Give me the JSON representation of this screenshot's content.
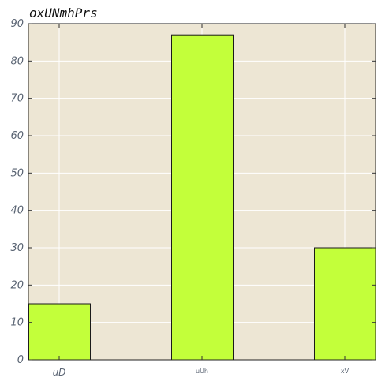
{
  "chart_data": {
    "type": "bar",
    "title": "oxUNmhPrs",
    "xlabel": "",
    "ylabel": "",
    "categories": [
      "uD",
      "uUh",
      "xV"
    ],
    "values": [
      15,
      87,
      30
    ],
    "ylim": [
      0,
      90
    ],
    "yticks": [
      "0",
      "10",
      "20",
      "30",
      "40",
      "50",
      "60",
      "70",
      "80",
      "90"
    ],
    "grid": true,
    "colors": {
      "bar": "#c3ff3a",
      "bar_edge": "#1a1a1a",
      "plot_background": "#ede6d4",
      "grid": "#ffffff"
    }
  }
}
